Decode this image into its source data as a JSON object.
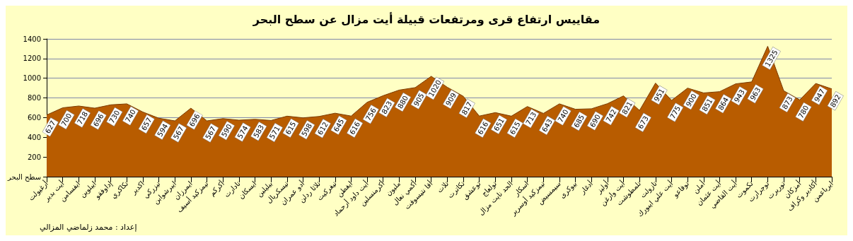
{
  "chart_data": {
    "type": "area",
    "title": "مقاييس ارتفاع قرى ومرتفعات قبيلة أيت مزال عن سطح البحر",
    "categories": [
      "أرغيولت",
      "أيت بدير",
      "ايفسامن",
      "ايبلوين",
      "إداوفقو",
      "تكاكري",
      "اكدير",
      "تيزركي",
      "ايبرشوابن",
      "ايمرزان",
      "تيمزكيد أسيف",
      "أكركم",
      "تادارت",
      "ايسكان",
      "بيليلين",
      "تيسكريال",
      "أدو عمران",
      "تلاثا ردلن",
      "تيغركيت",
      "ايغطن",
      "أيت داود أرحماد",
      "أكرمنسلين",
      "مليون",
      "أكمي نعال",
      "أفا نتيسوفت",
      "تلات",
      "تكاترت",
      "توعشق",
      "تولعاج",
      "الحد نايت مزال",
      "اسكار",
      "تيمزكيد أوسرير",
      "سيمسيض",
      "بيوكرى",
      "أدغار",
      "أوليز",
      "أيت وارغن",
      "تلمطوشت",
      "تازولت",
      "أيت علي ايبورك",
      "توفاعو",
      "أملن",
      "أيت عثمان",
      "أيت القاضي",
      "تكموت",
      "توجرارت",
      "توريرت",
      "أمزكان",
      "أكادير وكراف",
      "ايرباعمن"
    ],
    "series": [
      {
        "color": "#b85c00",
        "values": [
          627,
          700,
          718,
          696,
          730,
          740,
          657,
          594,
          567,
          696,
          567,
          590,
          574,
          583,
          571,
          615,
          598,
          612,
          645,
          616,
          756,
          823,
          880,
          905,
          1020,
          909,
          817,
          616,
          651,
          615,
          713,
          643,
          740,
          685,
          690,
          742,
          821,
          673,
          951,
          775,
          900,
          851,
          864,
          943,
          963,
          1325,
          873,
          780,
          947,
          892
        ]
      }
    ],
    "ylim": [
      0,
      1400
    ],
    "yticks": [
      {
        "value": 0,
        "label": "سطح البحر"
      },
      200,
      400,
      600,
      800,
      1000,
      1200,
      1400
    ],
    "grid": "y",
    "data_labels": true,
    "annotations": [
      "إعداد : محمد زلماضي المزالي"
    ]
  }
}
